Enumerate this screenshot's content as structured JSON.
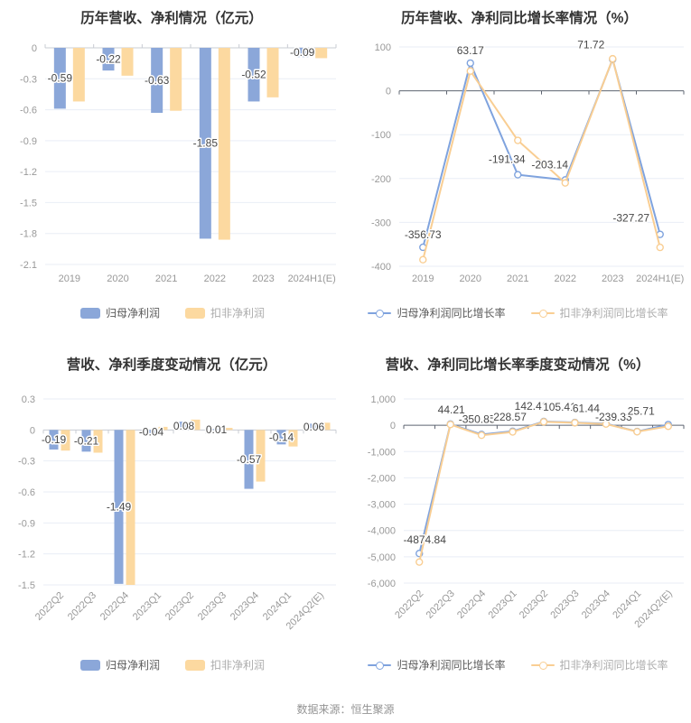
{
  "footer": {
    "text": "数据来源：恒生聚源"
  },
  "colors": {
    "blue": "#8BA7D9",
    "yellow": "#FCD9A0",
    "blue_line": "#7FA3DE",
    "yellow_line": "#F9CE93",
    "grid": "#E9EEF6",
    "axis_gray": "#C8CCD3",
    "zero_axis": "#5E6470",
    "tick_text": "#999999",
    "title_text": "#333333",
    "label_text": "#474747",
    "background": "#FFFFFF"
  },
  "chart_data": [
    {
      "type": "bar",
      "title": "历年营收、净利情况（亿元）",
      "categories": [
        "2019",
        "2020",
        "2021",
        "2022",
        "2023",
        "2024H1(E)"
      ],
      "ylim": [
        -2.1,
        0
      ],
      "yticks": [
        0,
        -0.3,
        -0.6,
        -0.9,
        -1.2,
        -1.5,
        -1.8,
        -2.1
      ],
      "ytick_labels": [
        "0",
        "-0.3",
        "-0.6",
        "-0.9",
        "-1.2",
        "-1.5",
        "-1.8",
        "-2.1"
      ],
      "grid": true,
      "legend_position": "bottom",
      "series": [
        {
          "name": "归母净利润",
          "color_key": "blue",
          "values": [
            -0.59,
            -0.22,
            -0.63,
            -1.85,
            -0.52,
            -0.09
          ],
          "labels": [
            "-0.59",
            "-0.22",
            "-0.63",
            "-1.85",
            "-0.52",
            "-0.09"
          ]
        },
        {
          "name": "扣非净利润",
          "color_key": "yellow",
          "values": [
            -0.52,
            -0.27,
            -0.61,
            -1.86,
            -0.48,
            -0.1
          ]
        }
      ]
    },
    {
      "type": "line",
      "title": "历年营收、净利同比增长率情况（%）",
      "categories": [
        "2019",
        "2020",
        "2021",
        "2022",
        "2023",
        "2024H1(E)"
      ],
      "ylim": [
        -400,
        100
      ],
      "yticks": [
        100,
        0,
        -100,
        -200,
        -300,
        -400
      ],
      "ytick_labels": [
        "100",
        "0",
        "-100",
        "-200",
        "-300",
        "-400"
      ],
      "grid": true,
      "legend_position": "bottom",
      "series": [
        {
          "name": "归母净利润同比增长率",
          "color_key": "blue_line",
          "values": [
            -356.73,
            63.17,
            -191.34,
            -203.14,
            71.72,
            -327.27
          ],
          "labels": [
            "-356.73",
            "63.17",
            "-191.34",
            "-203.14",
            "71.72",
            "-327.27"
          ]
        },
        {
          "name": "扣非净利润同比增长率",
          "color_key": "yellow_line",
          "values": [
            -385,
            45,
            -113,
            -210,
            73,
            -357
          ]
        }
      ]
    },
    {
      "type": "bar",
      "title": "营收、净利季度变动情况（亿元）",
      "categories": [
        "2022Q2",
        "2022Q3",
        "2022Q4",
        "2023Q1",
        "2023Q2",
        "2023Q3",
        "2023Q4",
        "2024Q1",
        "2024Q2(E)"
      ],
      "ylim": [
        -1.5,
        0.3
      ],
      "yticks": [
        0.3,
        0,
        -0.3,
        -0.6,
        -0.9,
        -1.2,
        -1.5
      ],
      "ytick_labels": [
        "0.3",
        "0",
        "-0.3",
        "-0.6",
        "-0.9",
        "-1.2",
        "-1.5"
      ],
      "grid": true,
      "legend_position": "bottom",
      "series": [
        {
          "name": "归母净利润",
          "color_key": "blue",
          "values": [
            -0.19,
            -0.21,
            -1.49,
            -0.04,
            0.08,
            0.01,
            -0.57,
            -0.14,
            0.06
          ],
          "labels": [
            "-0.19",
            "-0.21",
            "-1.49",
            "-0.04",
            "0.08",
            "0.01",
            "-0.57",
            "-0.14",
            "0.06"
          ]
        },
        {
          "name": "扣非净利润",
          "color_key": "yellow",
          "values": [
            -0.2,
            -0.22,
            -1.5,
            0.03,
            0.1,
            0.02,
            -0.5,
            -0.16,
            0.07
          ]
        }
      ]
    },
    {
      "type": "line",
      "title": "营收、净利同比增长率季度变动情况（%）",
      "categories": [
        "2022Q2",
        "2022Q3",
        "2022Q4",
        "2023Q1",
        "2023Q2",
        "2023Q3",
        "2023Q4",
        "2024Q1",
        "2024Q2(E)"
      ],
      "ylim": [
        -6000,
        1000
      ],
      "yticks": [
        1000,
        0,
        -1000,
        -2000,
        -3000,
        -4000,
        -5000,
        -6000
      ],
      "ytick_labels": [
        "1,000",
        "0",
        "-1,000",
        "-2,000",
        "-3,000",
        "-4,000",
        "-5,000",
        "-6,000"
      ],
      "grid": true,
      "legend_position": "bottom",
      "series": [
        {
          "name": "归母净利润同比增长率",
          "color_key": "blue_line",
          "values": [
            -4874.84,
            44.21,
            -350.85,
            -228.57,
            142.41,
            105.41,
            61.44,
            -239.33,
            25.71
          ],
          "labels": [
            "-4874.84",
            "44.21",
            "-350.85",
            "-228.57",
            "142.41",
            "105.41",
            "61.44",
            "-239.33",
            "25.71"
          ]
        },
        {
          "name": "扣非净利润同比增长率",
          "color_key": "yellow_line",
          "values": [
            -5200,
            30,
            -380,
            -255,
            130,
            95,
            45,
            -245,
            -40
          ]
        }
      ]
    }
  ]
}
